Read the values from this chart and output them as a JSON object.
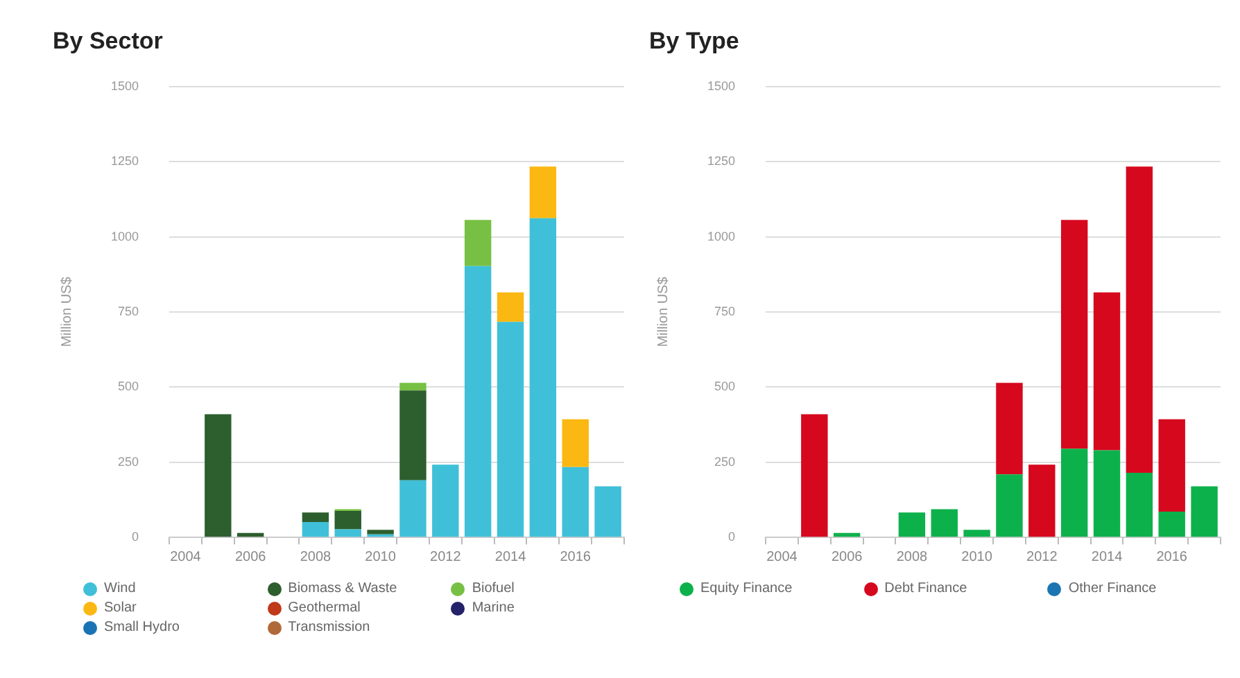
{
  "chart_data": [
    {
      "type": "bar",
      "title": "By Sector",
      "ylabel": "Million US$",
      "stacked": true,
      "grid": "y",
      "legend": "bottom",
      "categories": [
        "2004",
        null,
        "2006",
        null,
        "2008",
        null,
        "2010",
        null,
        "2012",
        null,
        "2014",
        null,
        "2016",
        null
      ],
      "ylim": [
        0,
        1500
      ],
      "yticks": [
        0,
        250,
        500,
        750,
        1000,
        1250,
        1500
      ],
      "series": [
        {
          "name": "Wind",
          "color": "#3fc0d8",
          "values": [
            null,
            null,
            null,
            null,
            51,
            27,
            10,
            190,
            242,
            903,
            717,
            1062,
            234,
            170
          ]
        },
        {
          "name": "Biomass & Waste",
          "color": "#2d5e2e",
          "values": [
            null,
            410,
            15,
            null,
            32,
            61,
            15,
            299,
            null,
            null,
            null,
            null,
            null,
            null
          ]
        },
        {
          "name": "Biofuel",
          "color": "#77c043",
          "values": [
            null,
            null,
            null,
            null,
            null,
            6,
            null,
            25,
            null,
            153,
            null,
            null,
            null,
            null
          ]
        },
        {
          "name": "Solar",
          "color": "#fbb812",
          "values": [
            null,
            null,
            null,
            null,
            null,
            null,
            null,
            null,
            null,
            null,
            98,
            172,
            159,
            null
          ]
        },
        {
          "name": "Geothermal",
          "color": "#c0391b",
          "values": [
            null,
            null,
            null,
            null,
            null,
            null,
            null,
            null,
            null,
            null,
            null,
            null,
            null,
            null
          ]
        },
        {
          "name": "Marine",
          "color": "#23226a",
          "values": [
            null,
            null,
            null,
            null,
            null,
            null,
            null,
            null,
            null,
            null,
            null,
            null,
            null,
            null
          ]
        },
        {
          "name": "Small Hydro",
          "color": "#1a73b5",
          "values": [
            null,
            null,
            null,
            null,
            null,
            null,
            null,
            null,
            null,
            null,
            null,
            null,
            null,
            null
          ]
        },
        {
          "name": "Transmission",
          "color": "#b06a3a",
          "values": [
            null,
            null,
            null,
            null,
            null,
            null,
            null,
            null,
            null,
            null,
            null,
            null,
            null,
            null
          ]
        }
      ]
    },
    {
      "type": "bar",
      "title": "By Type",
      "ylabel": "Million US$",
      "stacked": true,
      "grid": "y",
      "legend": "bottom",
      "categories": [
        "2004",
        null,
        "2006",
        null,
        "2008",
        null,
        "2010",
        null,
        "2012",
        null,
        "2014",
        null,
        "2016",
        null
      ],
      "ylim": [
        0,
        1500
      ],
      "yticks": [
        0,
        250,
        500,
        750,
        1000,
        1250,
        1500
      ],
      "series": [
        {
          "name": "Equity Finance",
          "color": "#0db14b",
          "values": [
            null,
            null,
            15,
            null,
            83,
            94,
            25,
            210,
            null,
            295,
            290,
            215,
            86,
            170
          ]
        },
        {
          "name": "Debt Finance",
          "color": "#d6081d",
          "values": [
            null,
            410,
            null,
            null,
            null,
            null,
            null,
            304,
            242,
            761,
            525,
            1019,
            307,
            null
          ]
        },
        {
          "name": "Other Finance",
          "color": "#1b75b0",
          "values": [
            null,
            null,
            null,
            null,
            null,
            null,
            null,
            null,
            null,
            null,
            null,
            null,
            null,
            null
          ]
        }
      ]
    }
  ]
}
